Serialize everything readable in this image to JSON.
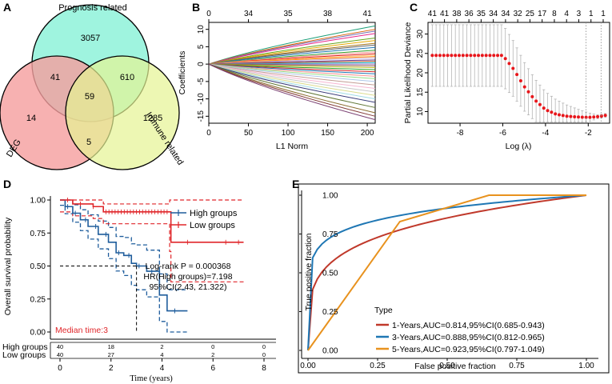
{
  "panels": {
    "A": {
      "label": "A",
      "type": "venn",
      "sets": [
        {
          "name": "Prognosis related",
          "color": "#8ef2d9"
        },
        {
          "name": "DEG",
          "color": "#f59d9d"
        },
        {
          "name": "Immune related",
          "color": "#e5f393"
        }
      ],
      "regions": {
        "prognosis_only": "3057",
        "deg_only": "14",
        "immune_only": "1285",
        "prognosis_deg": "41",
        "prognosis_immune": "610",
        "deg_immune": "5",
        "all_three": "59"
      }
    },
    "B": {
      "label": "B",
      "xlabel": "L1 Norm",
      "ylabel": "Coefficients",
      "xticks": [
        "0",
        "50",
        "100",
        "150",
        "200"
      ],
      "yticks": [
        "-15",
        "-10",
        "-5",
        "0",
        "5",
        "10"
      ],
      "top_ticks": [
        "0",
        "34",
        "35",
        "38",
        "41"
      ]
    },
    "C": {
      "label": "C",
      "xlabel": "Log (λ)",
      "ylabel": "Partial Likelihood Deviance",
      "xticks": [
        "-8",
        "-6",
        "-4",
        "-2"
      ],
      "yticks": [
        "10",
        "15",
        "20",
        "25",
        "30"
      ],
      "top_ticks": [
        "41",
        "41",
        "38",
        "36",
        "35",
        "34",
        "34",
        "32",
        "25",
        "17",
        "8",
        "4",
        "3",
        "1",
        "1"
      ]
    },
    "D": {
      "label": "D",
      "xlabel": "Time (years)",
      "ylabel": "Overall survival probability",
      "xticks": [
        "0",
        "2",
        "4",
        "6",
        "8"
      ],
      "yticks": [
        "0.00",
        "0.25",
        "0.50",
        "0.75",
        "1.00"
      ],
      "legend": [
        {
          "name": "High groups",
          "color": "#1f5d9c"
        },
        {
          "name": "Low groups",
          "color": "#e0262a"
        }
      ],
      "stats": [
        "Log-rank P = 0.000368",
        "HR(High groups)=7.198",
        "95%CI(2.43, 21.322)"
      ],
      "median_label": "Median time:3",
      "risk_table": [
        {
          "group": "High groups",
          "counts": [
            "40",
            "18",
            "2",
            "0",
            "0"
          ]
        },
        {
          "group": "Low groups",
          "counts": [
            "40",
            "27",
            "4",
            "2",
            "0"
          ]
        }
      ]
    },
    "E": {
      "label": "E",
      "xlabel": "False positive fraction",
      "ylabel": "True positive fraction",
      "xticks": [
        "0.00",
        "0.25",
        "0.50",
        "0.75",
        "1.00"
      ],
      "yticks": [
        "0.00",
        "0.25",
        "0.50",
        "0.75",
        "1.00"
      ],
      "legend_title": "Type",
      "legend": [
        {
          "name": "1-Years,AUC=0.814,95%CI(0.685-0.943)",
          "color": "#c0392b"
        },
        {
          "name": "3-Years,AUC=0.888,95%CI(0.812-0.965)",
          "color": "#1f77b4"
        },
        {
          "name": "5-Years,AUC=0.923,95%CI(0.797-1.049)",
          "color": "#e8921e"
        }
      ]
    }
  },
  "chart_data": [
    {
      "type": "line",
      "title": "B",
      "xlabel": "L1 Norm",
      "ylabel": "Coefficients",
      "xlim": [
        0,
        210
      ],
      "ylim": [
        -17,
        12
      ],
      "note": "LASSO coefficient paths, approximately 41 genes; final coefficients range about -16 to 11"
    },
    {
      "type": "scatter",
      "title": "C",
      "xlabel": "Log (λ)",
      "ylabel": "Partial Likelihood Deviance",
      "xlim": [
        -9.5,
        -1
      ],
      "ylim": [
        7,
        33
      ],
      "x": [
        -9.3,
        -8,
        -7,
        -6,
        -5.5,
        -5,
        -4.5,
        -4,
        -3.5,
        -3,
        -2.5,
        -2,
        -1.5,
        -1.2
      ],
      "y": [
        24.5,
        24.5,
        24.5,
        24.5,
        21,
        16.5,
        13,
        10.5,
        9.3,
        8.8,
        8.6,
        8.5,
        8.7,
        9.0
      ],
      "vlines": [
        -2.1,
        -1.4
      ]
    },
    {
      "type": "line",
      "title": "D",
      "xlabel": "Time (years)",
      "ylabel": "Overall survival probability",
      "xlim": [
        0,
        8
      ],
      "ylim": [
        0,
        1
      ],
      "series": [
        {
          "name": "High groups",
          "x": [
            0,
            0.2,
            0.5,
            0.8,
            1.1,
            1.5,
            1.9,
            2.2,
            2.5,
            2.8,
            3.0,
            3.4,
            3.9,
            4.2,
            5.0
          ],
          "y": [
            1.0,
            0.95,
            0.9,
            0.85,
            0.8,
            0.74,
            0.68,
            0.6,
            0.58,
            0.52,
            0.5,
            0.46,
            0.28,
            0.16,
            0.16
          ]
        },
        {
          "name": "Low groups",
          "x": [
            0,
            0.5,
            1.3,
            1.7,
            3.2,
            4.3,
            4.35,
            7.2
          ],
          "y": [
            1.0,
            0.97,
            0.95,
            0.91,
            0.91,
            0.91,
            0.68,
            0.68
          ]
        }
      ]
    },
    {
      "type": "line",
      "title": "E",
      "xlabel": "False positive fraction",
      "ylabel": "True positive fraction",
      "xlim": [
        0,
        1
      ],
      "ylim": [
        0,
        1
      ],
      "series": [
        {
          "name": "1-Years",
          "auc": 0.814
        },
        {
          "name": "3-Years",
          "auc": 0.888
        },
        {
          "name": "5-Years",
          "auc": 0.923,
          "x": [
            0,
            0.33,
            0.65,
            1.0
          ],
          "y": [
            0,
            0.83,
            1.0,
            1.0
          ]
        }
      ]
    }
  ]
}
